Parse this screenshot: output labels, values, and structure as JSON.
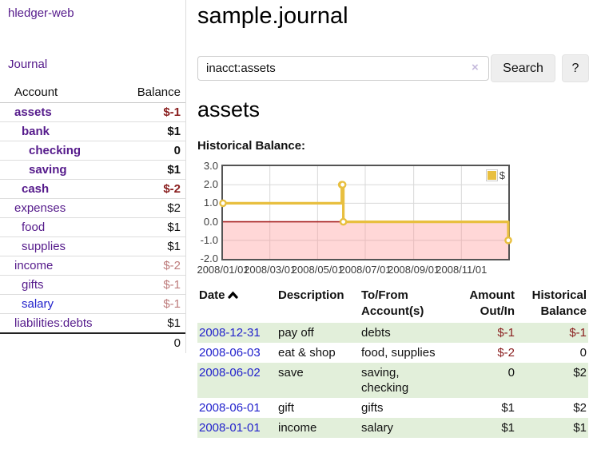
{
  "app": {
    "brand": "hledger-web",
    "nav_journal": "Journal"
  },
  "sidebar": {
    "accounts_header": {
      "account": "Account",
      "balance": "Balance"
    },
    "accounts": [
      {
        "name": "assets",
        "balance": "$-1",
        "depth": 0,
        "bold": true,
        "balance_class": "neg-strong",
        "link_color": "purple"
      },
      {
        "name": "bank",
        "balance": "$1",
        "depth": 1,
        "bold": true,
        "balance_class": "",
        "link_color": "purple"
      },
      {
        "name": "checking",
        "balance": "0",
        "depth": 2,
        "bold": true,
        "balance_class": "",
        "link_color": "purple"
      },
      {
        "name": "saving",
        "balance": "$1",
        "depth": 2,
        "bold": true,
        "balance_class": "",
        "link_color": "purple"
      },
      {
        "name": "cash",
        "balance": "$-2",
        "depth": 1,
        "bold": true,
        "balance_class": "neg-strong",
        "link_color": "purple"
      },
      {
        "name": "expenses",
        "balance": "$2",
        "depth": 0,
        "bold": false,
        "balance_class": "",
        "link_color": "purple"
      },
      {
        "name": "food",
        "balance": "$1",
        "depth": 1,
        "bold": false,
        "balance_class": "",
        "link_color": "purple"
      },
      {
        "name": "supplies",
        "balance": "$1",
        "depth": 1,
        "bold": false,
        "balance_class": "",
        "link_color": "purple"
      },
      {
        "name": "income",
        "balance": "$-2",
        "depth": 0,
        "bold": false,
        "balance_class": "neg-soft",
        "link_color": "purple"
      },
      {
        "name": "gifts",
        "balance": "$-1",
        "depth": 1,
        "bold": false,
        "balance_class": "neg-soft",
        "link_color": "purple"
      },
      {
        "name": "salary",
        "balance": "$-1",
        "depth": 1,
        "bold": false,
        "balance_class": "neg-soft",
        "link_color": "blue"
      },
      {
        "name": "liabilities:debts",
        "balance": "$1",
        "depth": 0,
        "bold": false,
        "balance_class": "",
        "link_color": "purple"
      }
    ],
    "total": "0"
  },
  "header": {
    "title": "sample.journal"
  },
  "search": {
    "value": "inacct:assets",
    "clear_icon": "×",
    "button": "Search",
    "help_button": "?"
  },
  "account_page": {
    "title": "assets",
    "chart_label": "Historical Balance:"
  },
  "chart_data": {
    "type": "line",
    "title": "Historical Balance",
    "series": [
      {
        "name": "$",
        "color": "#e8bf3f",
        "step": true,
        "points": [
          {
            "date": "2008-01-01",
            "x": 0,
            "y": 1
          },
          {
            "date": "2008-06-01",
            "x": 152,
            "y": 2
          },
          {
            "date": "2008-06-02",
            "x": 153,
            "y": 2
          },
          {
            "date": "2008-06-03",
            "x": 154,
            "y": 0
          },
          {
            "date": "2008-12-31",
            "x": 365,
            "y": -1
          }
        ]
      }
    ],
    "xlim": [
      0,
      365
    ],
    "ylim": [
      -2,
      3
    ],
    "yticks": [
      {
        "v": 3,
        "label": "3.0"
      },
      {
        "v": 2,
        "label": "2.0"
      },
      {
        "v": 1,
        "label": "1.0"
      },
      {
        "v": 0,
        "label": "0.0"
      },
      {
        "v": -1,
        "label": "-1.0"
      },
      {
        "v": -2,
        "label": "-2.0"
      }
    ],
    "xticks": [
      {
        "x": 0,
        "label": "2008/01/01"
      },
      {
        "x": 60,
        "label": "2008/03/01"
      },
      {
        "x": 121,
        "label": "2008/05/01"
      },
      {
        "x": 182,
        "label": "2008/07/01"
      },
      {
        "x": 244,
        "label": "2008/09/01"
      },
      {
        "x": 305,
        "label": "2008/11/01"
      }
    ],
    "legend": {
      "label": "$",
      "position": "top-right"
    },
    "grid": true,
    "negative_fill": "rgba(255,150,150,0.38)",
    "zero_line_color": "#a82222",
    "grid_color": "#d8d8d8"
  },
  "register": {
    "headers": {
      "date": "Date",
      "description": "Description",
      "accounts": "To/From Account(s)",
      "amount": "Amount Out/In",
      "balance": "Historical Balance"
    },
    "rows": [
      {
        "date": "2008-12-31",
        "description": "pay off",
        "accounts": "debts",
        "amount": "$-1",
        "balance": "$-1"
      },
      {
        "date": "2008-06-03",
        "description": "eat & shop",
        "accounts": "food, supplies",
        "amount": "$-2",
        "balance": "0"
      },
      {
        "date": "2008-06-02",
        "description": "save",
        "accounts": "saving, checking",
        "amount": "0",
        "balance": "$2"
      },
      {
        "date": "2008-06-01",
        "description": "gift",
        "accounts": "gifts",
        "amount": "$1",
        "balance": "$2"
      },
      {
        "date": "2008-01-01",
        "description": "income",
        "accounts": "salary",
        "amount": "$1",
        "balance": "$1"
      }
    ]
  },
  "colors": {
    "accent_purple": "#551A8B",
    "link_blue": "#2222cc",
    "negative_strong": "#891d1d",
    "negative_soft": "#bd7b7b",
    "row_stripe_green": "#e2efda",
    "chart_gold": "#e8bf3f",
    "chart_negative_region": "#fbdada",
    "chart_zero_line": "#a82222"
  }
}
